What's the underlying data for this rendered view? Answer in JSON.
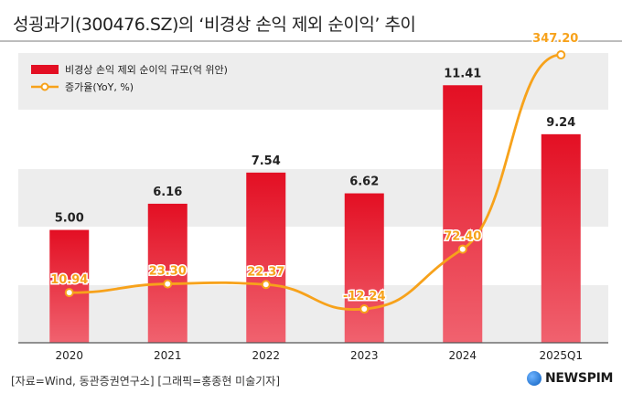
{
  "title": "성굉과기(300476.SZ)의 ‘비경상 손익 제외 순이익’ 추이",
  "footer": {
    "source": "[자료=Wind, 동관증권연구소] [그래픽=홍종현 미술기자]",
    "logo": "NEWSPIM"
  },
  "colors": {
    "bar_top": "#e30f23",
    "bar_bottom": "#f0626f",
    "line": "#f7a21b",
    "band": "#ededed"
  },
  "chart_data": {
    "type": "bar",
    "categories": [
      "2020",
      "2021",
      "2022",
      "2023",
      "2024",
      "2025Q1"
    ],
    "series": [
      {
        "name": "비경상 손익 제외 순이익 규모(억 위안)",
        "type": "bar",
        "values": [
          5.0,
          6.16,
          7.54,
          6.62,
          11.41,
          9.24
        ],
        "labels": [
          "5.00",
          "6.16",
          "7.54",
          "6.62",
          "11.41",
          "9.24"
        ]
      },
      {
        "name": "증가율(YoY, %)",
        "type": "line",
        "values": [
          10.94,
          23.3,
          22.37,
          -12.24,
          72.4,
          347.2
        ],
        "labels": [
          "10.94",
          "23.30",
          "22.37",
          "-12.24",
          "72.40",
          "347.20"
        ]
      }
    ],
    "bar_ylim": [
      0,
      13.0
    ],
    "line_ylim": [
      -60,
      355
    ],
    "legend": "top-left",
    "grid": false
  }
}
